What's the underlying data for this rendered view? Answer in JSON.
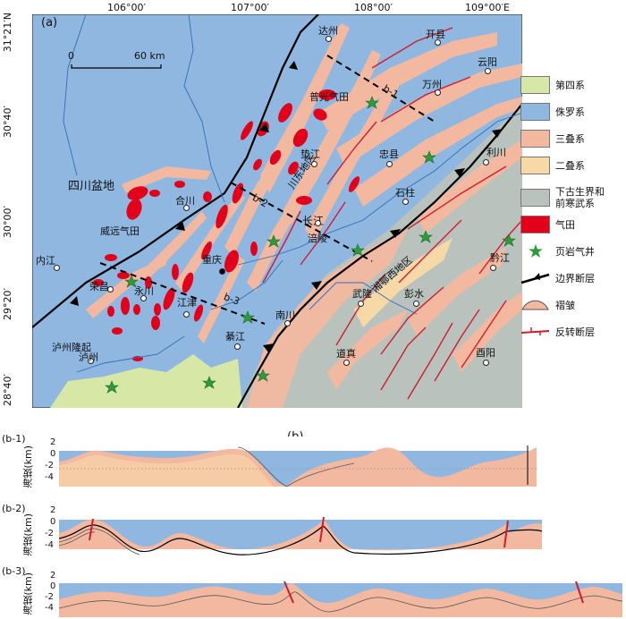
{
  "map": {
    "panel_label": "(a)",
    "lon_ticks": [
      "106°00′",
      "107°00′",
      "108°00′",
      "109°00′E"
    ],
    "lat_ticks": [
      "31°21′N",
      "30°40′",
      "30°00′",
      "29°20′",
      "28°40′"
    ],
    "scale": {
      "zero": "0",
      "end": "60 km"
    },
    "regions": {
      "sichuan_basin": "四川盆地",
      "chuandong": "川东地区",
      "xiangexi": "湘鄂西地区",
      "luzhou": "泸州隆起"
    },
    "fields": {
      "weiyuan": "威远气田",
      "puguang": "普光气田"
    },
    "river": "长江",
    "lines": {
      "b1": "b-1",
      "b2": "b-2",
      "b3": "b-3"
    },
    "cities": {
      "dazhou": "达州",
      "kaixian": "开县",
      "yunyang": "云阳",
      "wanzhou": "万州",
      "dianjiang": "垫江",
      "zhongxian": "忠县",
      "lichuan": "利川",
      "shizhu": "石柱",
      "hechuan": "合川",
      "fuling": "涪陵",
      "neijiang": "内江",
      "chongqing": "重庆",
      "yongchuan": "永川",
      "rongchang": "荣昌",
      "jiangjin": "江津",
      "nanchuan": "南川",
      "wulong": "武隆",
      "pengshui": "彭水",
      "qianjiang": "黔江",
      "luzhou": "泸州",
      "qijiang": "綦江",
      "daozhen": "道真",
      "youyang": "酉阳"
    }
  },
  "legend": {
    "items": [
      {
        "label": "第四系",
        "color": "#d7e8a6"
      },
      {
        "label": "侏罗系",
        "color": "#8fb7e0"
      },
      {
        "label": "三叠系",
        "color": "#f2b9a0"
      },
      {
        "label": "二叠系",
        "color": "#f7d9a8"
      },
      {
        "label": "下古生界和\n前寒武系",
        "color": "#b9c2bd"
      },
      {
        "label": "气田",
        "color": "#e3001b"
      },
      {
        "label": "页岩气井",
        "color": "#2e9a3c"
      },
      {
        "label": "边界断层",
        "color": "#000000"
      },
      {
        "label": "褶皱",
        "color": "#f2b9a0"
      },
      {
        "label": "反转断层",
        "color": "#d21b2e"
      }
    ]
  },
  "sections": {
    "panel_label": "(b)",
    "ylabel": "海拔(km)",
    "yticks": [
      "2",
      "0",
      "-2",
      "-4"
    ],
    "labels": [
      "(b-1)",
      "(b-2)",
      "(b-3)"
    ]
  },
  "colors": {
    "jurassic": "#8fb7e0",
    "triassic": "#f2b9a0",
    "permian": "#f7d9a8",
    "paleozoic": "#b9c2bd",
    "quaternary": "#d7e8a6",
    "gas": "#e3001b",
    "well": "#2e9a3c",
    "fault_red": "#d21b2e"
  }
}
